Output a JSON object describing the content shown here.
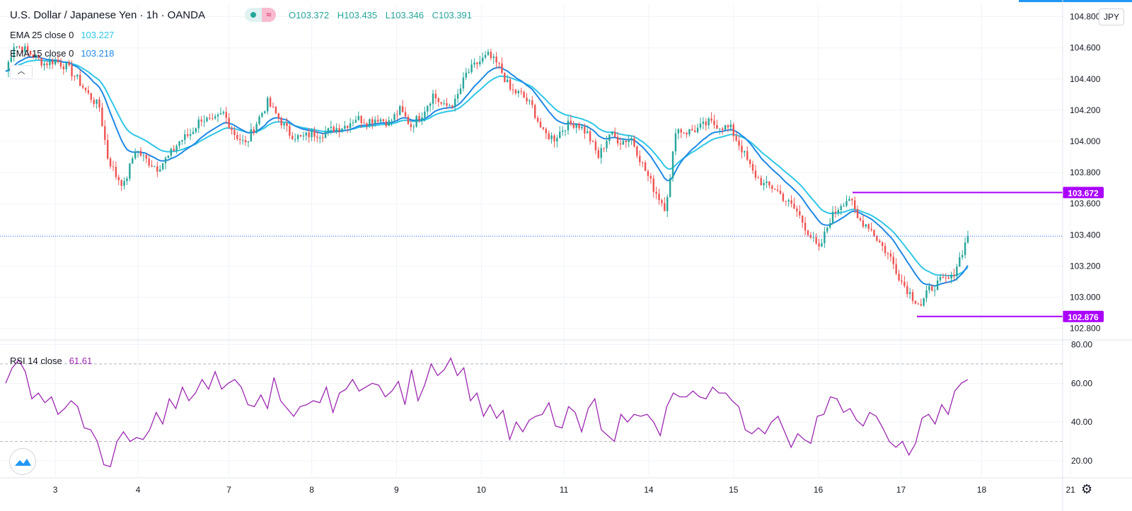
{
  "header": {
    "title": "U.S. Dollar / Japanese Yen · 1h · OANDA",
    "ohlc": {
      "o_label": "O",
      "o": "103.372",
      "h_label": "H",
      "h": "103.435",
      "l_label": "L",
      "l": "103.346",
      "c_label": "C",
      "c": "103.391"
    },
    "currency": "JPY",
    "status_icon": "≈"
  },
  "legend": {
    "ema25": {
      "label": "EMA 25 close 0",
      "value": "103.227"
    },
    "ema15": {
      "label": "EMA 15 close 0",
      "value": "103.218"
    },
    "rsi": {
      "label": "RSI 14 close",
      "value": "61.61"
    }
  },
  "colors": {
    "up": "#26a69a",
    "down": "#ef5350",
    "ema25": "#2ec6e6",
    "ema15": "#1e88e5",
    "rsi": "#9c27b0",
    "level": "#aa00ff",
    "grid": "#f0f3fa",
    "axis_text": "#131722"
  },
  "chart_data": [
    {
      "type": "candlestick",
      "title": "U.S. Dollar / Japanese Yen · 1h · OANDA",
      "y_ticks": [
        "104.800",
        "104.600",
        "104.400",
        "104.200",
        "104.000",
        "103.800",
        "103.600",
        "103.400",
        "103.200",
        "103.000",
        "102.800"
      ],
      "ylim": [
        102.73,
        104.88
      ],
      "x_ticks": [
        "3",
        "4",
        "7",
        "8",
        "9",
        "10",
        "11",
        "14",
        "15",
        "16",
        "17",
        "18",
        "21"
      ],
      "level_labels": [
        "103.672",
        "102.876"
      ],
      "levels": [
        103.672,
        102.876
      ],
      "current_price": 103.391,
      "close_path": [
        [
          0,
          104.45
        ],
        [
          3,
          104.62
        ],
        [
          6,
          104.6
        ],
        [
          10,
          104.55
        ],
        [
          14,
          104.5
        ],
        [
          18,
          104.52
        ],
        [
          22,
          104.48
        ],
        [
          26,
          104.4
        ],
        [
          30,
          104.3
        ],
        [
          34,
          104.22
        ],
        [
          37,
          103.9
        ],
        [
          40,
          103.78
        ],
        [
          43,
          103.72
        ],
        [
          47,
          103.95
        ],
        [
          51,
          103.88
        ],
        [
          55,
          103.83
        ],
        [
          59,
          103.9
        ],
        [
          63,
          104.0
        ],
        [
          67,
          104.05
        ],
        [
          71,
          104.15
        ],
        [
          75,
          104.12
        ],
        [
          79,
          104.18
        ],
        [
          83,
          104.05
        ],
        [
          87,
          103.98
        ],
        [
          91,
          104.12
        ],
        [
          95,
          104.25
        ],
        [
          99,
          104.15
        ],
        [
          103,
          104.05
        ],
        [
          107,
          104.02
        ],
        [
          111,
          104.05
        ],
        [
          115,
          104.05
        ],
        [
          119,
          104.08
        ],
        [
          123,
          104.1
        ],
        [
          127,
          104.15
        ],
        [
          131,
          104.13
        ],
        [
          135,
          104.15
        ],
        [
          139,
          104.12
        ],
        [
          143,
          104.2
        ],
        [
          147,
          104.1
        ],
        [
          151,
          104.18
        ],
        [
          155,
          104.3
        ],
        [
          159,
          104.22
        ],
        [
          163,
          104.25
        ],
        [
          167,
          104.43
        ],
        [
          171,
          104.5
        ],
        [
          175,
          104.55
        ],
        [
          179,
          104.48
        ],
        [
          183,
          104.33
        ],
        [
          187,
          104.3
        ],
        [
          191,
          104.22
        ],
        [
          195,
          104.05
        ],
        [
          199,
          104.02
        ],
        [
          203,
          104.1
        ],
        [
          207,
          104.12
        ],
        [
          211,
          104.05
        ],
        [
          215,
          103.9
        ],
        [
          219,
          104.05
        ],
        [
          223,
          104.0
        ],
        [
          227,
          104.02
        ],
        [
          231,
          103.85
        ],
        [
          235,
          103.7
        ],
        [
          239,
          103.58
        ],
        [
          241,
          103.75
        ],
        [
          243,
          104.08
        ],
        [
          247,
          104.06
        ],
        [
          251,
          104.08
        ],
        [
          255,
          104.12
        ],
        [
          259,
          104.1
        ],
        [
          263,
          104.08
        ],
        [
          267,
          103.95
        ],
        [
          271,
          103.8
        ],
        [
          275,
          103.72
        ],
        [
          279,
          103.7
        ],
        [
          283,
          103.62
        ],
        [
          287,
          103.55
        ],
        [
          291,
          103.42
        ],
        [
          295,
          103.3
        ],
        [
          299,
          103.5
        ],
        [
          303,
          103.6
        ],
        [
          306,
          103.64
        ],
        [
          309,
          103.5
        ],
        [
          313,
          103.46
        ],
        [
          317,
          103.35
        ],
        [
          321,
          103.25
        ],
        [
          325,
          103.1
        ],
        [
          329,
          103.0
        ],
        [
          332,
          102.95
        ],
        [
          335,
          103.05
        ],
        [
          339,
          103.1
        ],
        [
          343,
          103.12
        ],
        [
          346,
          103.25
        ],
        [
          349,
          103.39
        ]
      ]
    },
    {
      "type": "line",
      "title": "RSI 14 close",
      "y_ticks": [
        "80.00",
        "60.00",
        "40.00",
        "20.00"
      ],
      "ylim": [
        12,
        82
      ],
      "bands": [
        70,
        30
      ],
      "series": [
        {
          "name": "RSI",
          "values": [
            60,
            68,
            72,
            66,
            52,
            55,
            50,
            53,
            44,
            47,
            51,
            48,
            37,
            36,
            30,
            18,
            17,
            30,
            35,
            30,
            32,
            31,
            36,
            45,
            39,
            52,
            47,
            58,
            51,
            55,
            62,
            57,
            66,
            57,
            60,
            62,
            58,
            49,
            48,
            54,
            47,
            63,
            51,
            47,
            43,
            48,
            49,
            51,
            50,
            58,
            45,
            55,
            57,
            62,
            56,
            58,
            60,
            59,
            53,
            56,
            61,
            49,
            67,
            51,
            59,
            70,
            64,
            67,
            73,
            64,
            68,
            51,
            55,
            43,
            49,
            42,
            46,
            31,
            40,
            35,
            41,
            43,
            44,
            50,
            38,
            37,
            48,
            45,
            35,
            47,
            52,
            36,
            33,
            30,
            44,
            40,
            44,
            43,
            44,
            40,
            33,
            48,
            55,
            53,
            53,
            56,
            53,
            52,
            58,
            55,
            55,
            51,
            48,
            36,
            34,
            37,
            34,
            40,
            43,
            35,
            27,
            34,
            31,
            29,
            43,
            44,
            53,
            52,
            45,
            47,
            41,
            38,
            45,
            43,
            37,
            30,
            27,
            30,
            23,
            29,
            42,
            44,
            39,
            49,
            44,
            56,
            60,
            62
          ]
        }
      ]
    }
  ]
}
